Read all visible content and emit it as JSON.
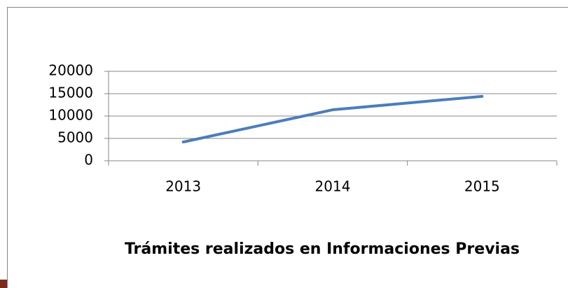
{
  "chart_data": {
    "type": "line",
    "title": "Trámites realizados en Informaciones Previas",
    "categories": [
      "2013",
      "2014",
      "2015"
    ],
    "values": [
      4200,
      11400,
      14400
    ],
    "color": "#4a7ebb",
    "ylim": [
      0,
      20000
    ],
    "yticks": [
      0,
      5000,
      10000,
      15000,
      20000
    ],
    "grid": true
  }
}
